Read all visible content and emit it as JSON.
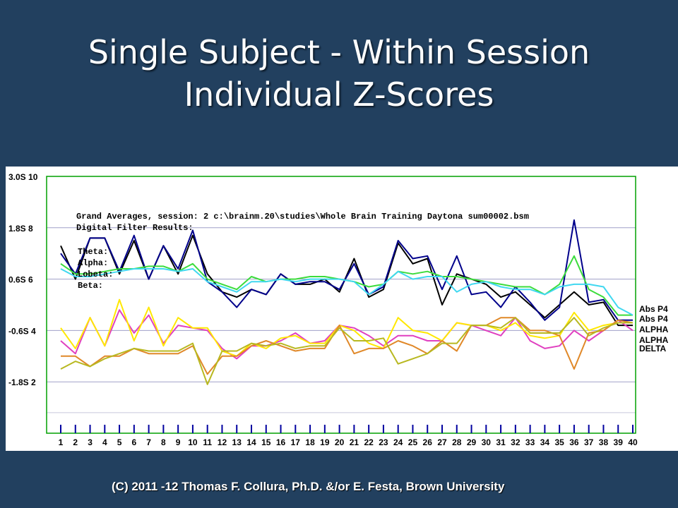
{
  "slide": {
    "title_line1": "Single Subject - Within Session",
    "title_line2": "Individual Z-Scores",
    "footer": "(C) 2011 -12 Thomas F. Collura, Ph.D. &/or E. Festa, Brown University"
  },
  "colors": {
    "background": "#22405f",
    "title": "#ffffff",
    "plot_border": "#00a000",
    "tick": "#0000a0"
  },
  "chart_data": {
    "type": "line",
    "x": [
      1,
      2,
      3,
      4,
      5,
      6,
      7,
      8,
      9,
      10,
      11,
      12,
      13,
      14,
      15,
      16,
      17,
      18,
      19,
      20,
      21,
      22,
      23,
      24,
      25,
      26,
      27,
      28,
      29,
      30,
      31,
      32,
      33,
      34,
      35,
      36,
      37,
      38,
      39,
      40
    ],
    "ylim": [
      0,
      10
    ],
    "y_ticks": [
      {
        "value": 10,
        "label": "3.0S 10"
      },
      {
        "value": 8,
        "label": "1.8S 8"
      },
      {
        "value": 6,
        "label": "0.6S 6"
      },
      {
        "value": 4,
        "label": "-0.6S 4"
      },
      {
        "value": 2,
        "label": "-1.8S 2"
      }
    ],
    "annotations": [
      "Grand Averages, session: 2 c:\\brainm.20\\studies\\Whole Brain Training Daytona sum00002.bsm",
      "Digital Filter Results:",
      "Theta:",
      "Alpha:",
      "Lobeta:",
      "Beta:"
    ],
    "right_labels": [
      "Abs P4",
      "Abs P4",
      "ALPHA",
      "ALPHA",
      "DELTA"
    ],
    "series": [
      {
        "color": "#000000",
        "values": [
          7.3,
          6.0,
          7.6,
          7.6,
          6.2,
          7.5,
          6.0,
          7.3,
          6.2,
          7.7,
          6.2,
          5.5,
          5.3,
          5.6,
          5.4,
          6.2,
          5.8,
          5.8,
          6.0,
          5.5,
          6.8,
          5.3,
          5.6,
          7.4,
          6.6,
          6.8,
          5.0,
          6.2,
          6.0,
          5.8,
          5.3,
          5.5,
          5.0,
          4.5,
          5.0,
          5.5,
          5.0,
          5.1,
          4.2,
          4.2
        ]
      },
      {
        "color": "#00008b",
        "values": [
          7.0,
          6.2,
          7.6,
          7.6,
          6.3,
          7.7,
          6.0,
          7.3,
          6.4,
          7.9,
          5.9,
          5.5,
          4.9,
          5.6,
          5.4,
          6.2,
          5.8,
          5.9,
          5.9,
          5.6,
          6.6,
          5.4,
          5.7,
          7.5,
          6.8,
          6.9,
          5.6,
          6.9,
          5.4,
          5.5,
          4.9,
          5.7,
          5.1,
          4.4,
          4.9,
          8.3,
          5.1,
          5.2,
          4.4,
          4.4
        ]
      },
      {
        "color": "#3cdc3c",
        "values": [
          6.6,
          6.2,
          6.2,
          6.3,
          6.4,
          6.4,
          6.5,
          6.5,
          6.3,
          6.6,
          6.0,
          5.8,
          5.6,
          6.1,
          5.9,
          6.0,
          6.0,
          6.1,
          6.1,
          6.0,
          5.9,
          5.7,
          5.8,
          6.3,
          6.2,
          6.3,
          6.1,
          6.1,
          6.0,
          5.9,
          5.8,
          5.7,
          5.7,
          5.4,
          5.8,
          6.9,
          5.6,
          5.3,
          4.6,
          4.6
        ]
      },
      {
        "color": "#40d8f0",
        "values": [
          6.4,
          6.1,
          6.1,
          6.2,
          6.3,
          6.4,
          6.4,
          6.4,
          6.3,
          6.4,
          5.9,
          5.7,
          5.5,
          5.9,
          5.9,
          6.0,
          5.9,
          6.0,
          6.0,
          6.0,
          5.9,
          5.4,
          5.8,
          6.3,
          6.0,
          6.1,
          6.1,
          5.5,
          5.8,
          5.9,
          5.7,
          5.6,
          5.6,
          5.4,
          5.7,
          5.8,
          5.8,
          5.7,
          4.9,
          4.6
        ]
      },
      {
        "color": "#e040c0",
        "values": [
          3.6,
          3.1,
          4.5,
          3.4,
          4.8,
          3.9,
          4.6,
          3.5,
          4.2,
          4.1,
          4.0,
          3.3,
          2.9,
          3.4,
          3.4,
          3.6,
          3.9,
          3.5,
          3.6,
          4.2,
          4.1,
          3.8,
          3.4,
          3.8,
          3.8,
          3.6,
          3.6,
          4.3,
          4.2,
          4.0,
          3.8,
          4.5,
          3.6,
          3.3,
          3.4,
          4.0,
          3.6,
          4.0,
          4.4,
          4.0
        ]
      },
      {
        "color": "#ffe800",
        "values": [
          4.1,
          3.3,
          4.5,
          3.4,
          5.2,
          3.6,
          4.9,
          3.4,
          4.5,
          4.1,
          4.1,
          3.2,
          3.0,
          3.5,
          3.3,
          3.7,
          3.8,
          3.5,
          3.5,
          4.2,
          4.0,
          3.5,
          3.3,
          4.5,
          4.0,
          3.9,
          3.6,
          4.3,
          4.2,
          4.2,
          4.0,
          4.3,
          3.8,
          3.7,
          3.8,
          4.7,
          4.0,
          4.2,
          4.3,
          4.3
        ]
      },
      {
        "color": "#e08828",
        "values": [
          3.0,
          3.0,
          2.6,
          3.0,
          3.0,
          3.3,
          3.1,
          3.1,
          3.1,
          3.4,
          2.3,
          3.0,
          3.0,
          3.4,
          3.6,
          3.4,
          3.2,
          3.3,
          3.3,
          4.2,
          3.1,
          3.3,
          3.3,
          3.6,
          3.4,
          3.1,
          3.6,
          3.2,
          4.2,
          4.2,
          4.5,
          4.5,
          4.0,
          4.0,
          3.8,
          2.5,
          3.9,
          4.0,
          4.4,
          4.3
        ]
      },
      {
        "color": "#b8b820",
        "values": [
          2.5,
          2.8,
          2.6,
          2.9,
          3.1,
          3.3,
          3.2,
          3.2,
          3.2,
          3.5,
          1.9,
          3.2,
          3.2,
          3.5,
          3.4,
          3.5,
          3.3,
          3.4,
          3.4,
          4.1,
          3.6,
          3.6,
          3.7,
          2.7,
          2.9,
          3.1,
          3.5,
          3.5,
          4.2,
          4.2,
          4.1,
          4.5,
          3.9,
          3.9,
          3.9,
          4.5,
          3.8,
          4.1,
          4.3,
          4.3
        ]
      }
    ]
  }
}
